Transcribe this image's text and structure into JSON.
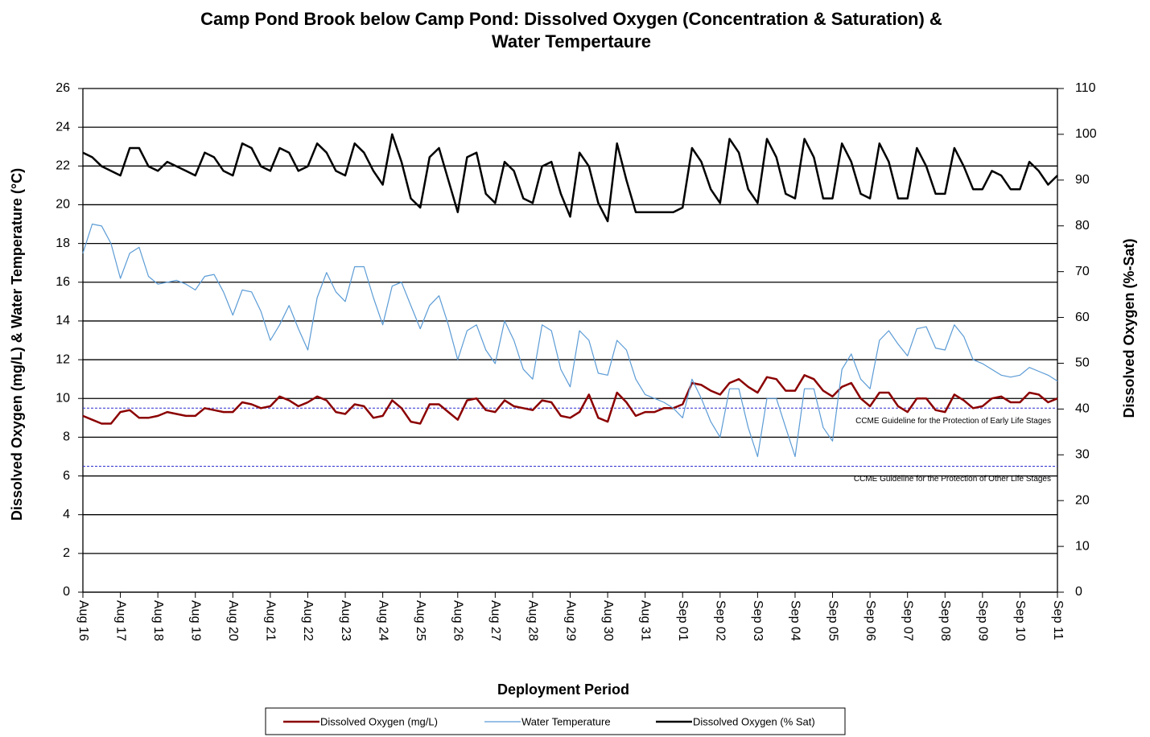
{
  "chart_data": {
    "type": "line",
    "title": [
      "Camp Pond Brook below Camp Pond: Dissolved Oxygen (Concentration & Saturation) &",
      "Water Tempertaure"
    ],
    "x_label": "Deployment Period",
    "y_label": "Dissolved  Oxygen (mg/L) & Water Temperature (°C)",
    "y2_label": "Dissolved  Oxygen (%-Sat)",
    "xlim": [
      0,
      26
    ],
    "xticks": [
      {
        "value": 0,
        "label": "Aug 16"
      },
      {
        "value": 1,
        "label": "Aug 17"
      },
      {
        "value": 2,
        "label": "Aug 18"
      },
      {
        "value": 3,
        "label": "Aug 19"
      },
      {
        "value": 4,
        "label": "Aug 20"
      },
      {
        "value": 5,
        "label": "Aug 21"
      },
      {
        "value": 6,
        "label": "Aug 22"
      },
      {
        "value": 7,
        "label": "Aug 23"
      },
      {
        "value": 8,
        "label": "Aug 24"
      },
      {
        "value": 9,
        "label": "Aug 25"
      },
      {
        "value": 10,
        "label": "Aug 26"
      },
      {
        "value": 11,
        "label": "Aug 27"
      },
      {
        "value": 12,
        "label": "Aug 28"
      },
      {
        "value": 13,
        "label": "Aug 29"
      },
      {
        "value": 14,
        "label": "Aug 30"
      },
      {
        "value": 15,
        "label": "Aug 31"
      },
      {
        "value": 16,
        "label": "Sep 01"
      },
      {
        "value": 17,
        "label": "Sep 02"
      },
      {
        "value": 18,
        "label": "Sep 03"
      },
      {
        "value": 19,
        "label": "Sep 04"
      },
      {
        "value": 20,
        "label": "Sep 05"
      },
      {
        "value": 21,
        "label": "Sep 06"
      },
      {
        "value": 22,
        "label": "Sep 07"
      },
      {
        "value": 23,
        "label": "Sep 08"
      },
      {
        "value": 24,
        "label": "Sep 09"
      },
      {
        "value": 25,
        "label": "Sep 10"
      },
      {
        "value": 26,
        "label": "Sep 11"
      }
    ],
    "ylim": [
      0,
      26
    ],
    "yticks": [
      0,
      2,
      4,
      6,
      8,
      10,
      12,
      14,
      16,
      18,
      20,
      22,
      24,
      26
    ],
    "y2lim": [
      0,
      110
    ],
    "y2ticks": [
      0,
      10,
      20,
      30,
      40,
      50,
      60,
      70,
      80,
      90,
      100,
      110
    ],
    "grid": true,
    "guidelines": [
      {
        "value": 9.5,
        "label": "CCME Guideline  for  the  Protection  of  Early Life Stages",
        "color": "#2f2fd0"
      },
      {
        "value": 6.5,
        "label": "CCME Guideline  for  the  Protection  of  Other  Life  Stages",
        "color": "#2f2fd0"
      }
    ],
    "x": [
      0,
      0.25,
      0.5,
      0.75,
      1,
      1.25,
      1.5,
      1.75,
      2,
      2.25,
      2.5,
      2.75,
      3,
      3.25,
      3.5,
      3.75,
      4,
      4.25,
      4.5,
      4.75,
      5,
      5.25,
      5.5,
      5.75,
      6,
      6.25,
      6.5,
      6.75,
      7,
      7.25,
      7.5,
      7.75,
      8,
      8.25,
      8.5,
      8.75,
      9,
      9.25,
      9.5,
      9.75,
      10,
      10.25,
      10.5,
      10.75,
      11,
      11.25,
      11.5,
      11.75,
      12,
      12.25,
      12.5,
      12.75,
      13,
      13.25,
      13.5,
      13.75,
      14,
      14.25,
      14.5,
      14.75,
      15,
      15.25,
      15.5,
      15.75,
      16,
      16.25,
      16.5,
      16.75,
      17,
      17.25,
      17.5,
      17.75,
      18,
      18.25,
      18.5,
      18.75,
      19,
      19.25,
      19.5,
      19.75,
      20,
      20.25,
      20.5,
      20.75,
      21,
      21.25,
      21.5,
      21.75,
      22,
      22.25,
      22.5,
      22.75,
      23,
      23.25,
      23.5,
      23.75,
      24,
      24.25,
      24.5,
      24.75,
      25,
      25.25,
      25.5,
      25.75,
      26
    ],
    "series": [
      {
        "name": "Dissolved Oxygen (mg/L)",
        "color": "#8b0000",
        "width": 2.5,
        "values": [
          9.1,
          8.9,
          8.7,
          8.7,
          9.3,
          9.4,
          9.0,
          9.0,
          9.1,
          9.3,
          9.2,
          9.1,
          9.1,
          9.5,
          9.4,
          9.3,
          9.3,
          9.8,
          9.7,
          9.5,
          9.6,
          10.1,
          9.9,
          9.6,
          9.8,
          10.1,
          9.9,
          9.3,
          9.2,
          9.7,
          9.6,
          9.0,
          9.1,
          9.9,
          9.5,
          8.8,
          8.7,
          9.7,
          9.7,
          9.3,
          8.9,
          9.9,
          10.0,
          9.4,
          9.3,
          9.9,
          9.6,
          9.5,
          9.4,
          9.9,
          9.8,
          9.1,
          9.0,
          9.3,
          10.2,
          9.0,
          8.8,
          10.3,
          9.8,
          9.1,
          9.3,
          9.3,
          9.5,
          9.5,
          9.7,
          10.8,
          10.7,
          10.4,
          10.2,
          10.8,
          11.0,
          10.6,
          10.3,
          11.1,
          11.0,
          10.4,
          10.4,
          11.2,
          11.0,
          10.4,
          10.1,
          10.6,
          10.8,
          10.0,
          9.6,
          10.3,
          10.3,
          9.6,
          9.3,
          10.0,
          10.0,
          9.4,
          9.3,
          10.2,
          9.9,
          9.5,
          9.6,
          10.0,
          10.1,
          9.8,
          9.8,
          10.3,
          10.2,
          9.8,
          10.0
        ]
      },
      {
        "name": "Water Temperature",
        "color": "#5b9bd5",
        "width": 1.2,
        "values": [
          17.5,
          19.0,
          18.9,
          18.0,
          16.2,
          17.5,
          17.8,
          16.3,
          15.9,
          16.0,
          16.1,
          15.9,
          15.6,
          16.3,
          16.4,
          15.5,
          14.3,
          15.6,
          15.5,
          14.5,
          13.0,
          13.8,
          14.8,
          13.6,
          12.5,
          15.2,
          16.5,
          15.5,
          15.0,
          16.8,
          16.8,
          15.2,
          13.8,
          15.8,
          16.0,
          14.8,
          13.6,
          14.8,
          15.3,
          13.8,
          12.0,
          13.5,
          13.8,
          12.5,
          11.8,
          14.0,
          13.0,
          11.5,
          11.0,
          13.8,
          13.5,
          11.5,
          10.6,
          13.5,
          13.0,
          11.3,
          11.2,
          13.0,
          12.5,
          11.0,
          10.2,
          10.0,
          9.8,
          9.5,
          9.0,
          11.0,
          10.0,
          8.8,
          8.0,
          10.5,
          10.5,
          8.5,
          7.0,
          10.0,
          10.0,
          8.5,
          7.0,
          10.5,
          10.5,
          8.5,
          7.8,
          11.5,
          12.3,
          11.0,
          10.5,
          13.0,
          13.5,
          12.8,
          12.2,
          13.6,
          13.7,
          12.6,
          12.5,
          13.8,
          13.2,
          12.0,
          11.8,
          11.5,
          11.2,
          11.1,
          11.2,
          11.6,
          11.4,
          11.2,
          10.9
        ]
      },
      {
        "name": "Dissolved Oxygen (% Sat)",
        "color": "#000000",
        "width": 2.5,
        "axis": "y2",
        "values": [
          96,
          95,
          93,
          92,
          91,
          97,
          97,
          93,
          92,
          94,
          93,
          92,
          91,
          96,
          95,
          92,
          91,
          98,
          97,
          93,
          92,
          97,
          96,
          92,
          93,
          98,
          96,
          92,
          91,
          98,
          96,
          92,
          89,
          100,
          94,
          86,
          84,
          95,
          97,
          90,
          83,
          95,
          96,
          87,
          85,
          94,
          92,
          86,
          85,
          93,
          94,
          87,
          82,
          96,
          93,
          85,
          81,
          98,
          90,
          83,
          83,
          83,
          83,
          83,
          84,
          97,
          94,
          88,
          85,
          99,
          96,
          88,
          85,
          99,
          95,
          87,
          86,
          99,
          95,
          86,
          86,
          98,
          94,
          87,
          86,
          98,
          94,
          86,
          86,
          97,
          93,
          87,
          87,
          97,
          93,
          88,
          88,
          92,
          91,
          88,
          88,
          94,
          92,
          89,
          91
        ]
      }
    ]
  }
}
